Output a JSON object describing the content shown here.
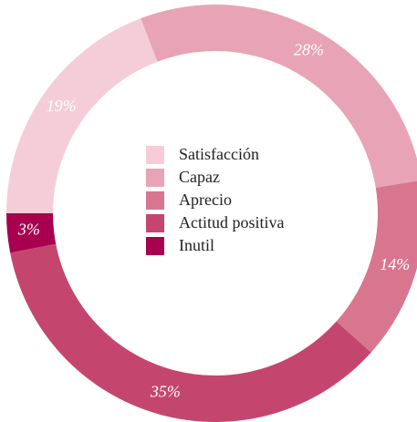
{
  "chart_data": {
    "type": "donut",
    "categories": [
      "Satisfacción",
      "Capaz",
      "Aprecio",
      "Actitud positiva",
      "Inutil"
    ],
    "values": [
      19,
      28,
      14,
      35,
      3
    ],
    "value_labels": [
      "19%",
      "28%",
      "14%",
      "35%",
      "3%"
    ],
    "colors": [
      "#f5cdd9",
      "#e8a4b6",
      "#d9768f",
      "#c4466f",
      "#a8004f"
    ],
    "legend": "center"
  }
}
